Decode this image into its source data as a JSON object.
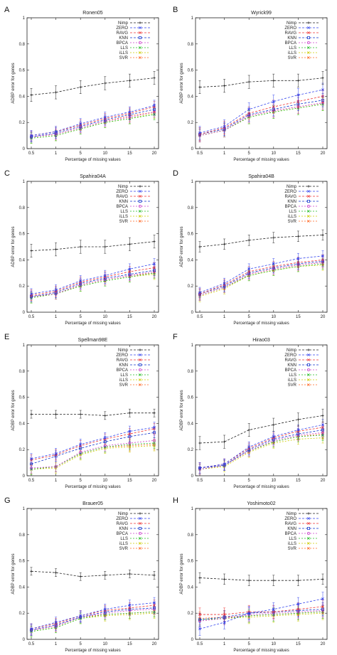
{
  "figure": {
    "series_names": [
      "Nimp",
      "ZERO",
      "RAVG",
      "KNN",
      "BPCA",
      "LLS",
      "iLLS",
      "SVR"
    ],
    "series_colors": [
      "#222222",
      "#3344ee",
      "#ee3333",
      "#1133cc",
      "#cc44cc",
      "#22bb22",
      "#cccc00",
      "#ff6622"
    ]
  },
  "chart_data": [
    {
      "type": "line",
      "panel": "A",
      "title": "Ronen05",
      "xlabel": "Percentage of missing values",
      "ylabel": "ADBP error for genes",
      "categories": [
        "0.5",
        "1",
        "5",
        "10",
        "15",
        "20"
      ],
      "ylim": [
        0,
        1
      ],
      "yticks": [
        "0",
        "0.2",
        "0.4",
        "0.6",
        "0.8",
        "1"
      ],
      "legend": "top-right",
      "grid": false,
      "series": [
        {
          "name": "Nimp",
          "values": [
            0.41,
            0.43,
            0.47,
            0.5,
            0.52,
            0.54
          ],
          "err": 0.05
        },
        {
          "name": "ZERO",
          "values": [
            0.1,
            0.13,
            0.19,
            0.24,
            0.28,
            0.33
          ],
          "err": 0.04
        },
        {
          "name": "RAVG",
          "values": [
            0.1,
            0.13,
            0.18,
            0.23,
            0.27,
            0.32
          ],
          "err": 0.04
        },
        {
          "name": "KNN",
          "values": [
            0.09,
            0.12,
            0.17,
            0.22,
            0.26,
            0.3
          ],
          "err": 0.04
        },
        {
          "name": "BPCA",
          "values": [
            0.09,
            0.11,
            0.16,
            0.21,
            0.24,
            0.28
          ],
          "err": 0.04
        },
        {
          "name": "LLS",
          "values": [
            0.08,
            0.1,
            0.15,
            0.2,
            0.23,
            0.26
          ],
          "err": 0.04
        },
        {
          "name": "iLLS",
          "values": [
            0.08,
            0.1,
            0.15,
            0.2,
            0.23,
            0.27
          ],
          "err": 0.04
        },
        {
          "name": "SVR",
          "values": [
            0.09,
            0.11,
            0.16,
            0.21,
            0.25,
            0.28
          ],
          "err": 0.04
        }
      ]
    },
    {
      "type": "line",
      "panel": "B",
      "title": "Wyrick99",
      "xlabel": "Percentage of missing values",
      "ylabel": "ADBP error for genes",
      "categories": [
        "0.5",
        "1",
        "5",
        "10",
        "15",
        "20"
      ],
      "ylim": [
        0,
        1
      ],
      "yticks": [
        "0",
        "0.2",
        "0.4",
        "0.6",
        "0.8",
        "1"
      ],
      "legend": "top-right",
      "grid": false,
      "series": [
        {
          "name": "Nimp",
          "values": [
            0.47,
            0.48,
            0.51,
            0.52,
            0.52,
            0.54
          ],
          "err": 0.05
        },
        {
          "name": "ZERO",
          "values": [
            0.12,
            0.17,
            0.3,
            0.36,
            0.41,
            0.45
          ],
          "err": 0.05
        },
        {
          "name": "RAVG",
          "values": [
            0.11,
            0.16,
            0.27,
            0.32,
            0.36,
            0.4
          ],
          "err": 0.05
        },
        {
          "name": "KNN",
          "values": [
            0.11,
            0.15,
            0.26,
            0.3,
            0.34,
            0.37
          ],
          "err": 0.05
        },
        {
          "name": "BPCA",
          "values": [
            0.1,
            0.14,
            0.25,
            0.29,
            0.32,
            0.35
          ],
          "err": 0.05
        },
        {
          "name": "LLS",
          "values": [
            0.1,
            0.14,
            0.24,
            0.28,
            0.31,
            0.34
          ],
          "err": 0.05
        },
        {
          "name": "iLLS",
          "values": [
            0.1,
            0.14,
            0.24,
            0.28,
            0.31,
            0.34
          ],
          "err": 0.05
        },
        {
          "name": "SVR",
          "values": [
            0.1,
            0.14,
            0.25,
            0.29,
            0.32,
            0.35
          ],
          "err": 0.05
        }
      ]
    },
    {
      "type": "line",
      "panel": "C",
      "title": "Spahira04A",
      "xlabel": "Percentage of missing values",
      "ylabel": "ADBP error for genes",
      "categories": [
        "0.5",
        "1",
        "5",
        "10",
        "15",
        "20"
      ],
      "ylim": [
        0,
        1
      ],
      "yticks": [
        "0",
        "0.2",
        "0.4",
        "0.6",
        "0.8",
        "1"
      ],
      "legend": "top-right",
      "grid": false,
      "series": [
        {
          "name": "Nimp",
          "values": [
            0.47,
            0.48,
            0.5,
            0.5,
            0.52,
            0.54
          ],
          "err": 0.05
        },
        {
          "name": "ZERO",
          "values": [
            0.14,
            0.17,
            0.24,
            0.28,
            0.33,
            0.37
          ],
          "err": 0.04
        },
        {
          "name": "RAVG",
          "values": [
            0.13,
            0.16,
            0.23,
            0.27,
            0.31,
            0.34
          ],
          "err": 0.04
        },
        {
          "name": "KNN",
          "values": [
            0.12,
            0.15,
            0.22,
            0.26,
            0.29,
            0.32
          ],
          "err": 0.04
        },
        {
          "name": "BPCA",
          "values": [
            0.12,
            0.14,
            0.21,
            0.25,
            0.28,
            0.31
          ],
          "err": 0.04
        },
        {
          "name": "LLS",
          "values": [
            0.11,
            0.14,
            0.2,
            0.24,
            0.27,
            0.3
          ],
          "err": 0.04
        },
        {
          "name": "iLLS",
          "values": [
            0.11,
            0.14,
            0.2,
            0.24,
            0.27,
            0.29
          ],
          "err": 0.04
        },
        {
          "name": "SVR",
          "values": [
            0.12,
            0.14,
            0.21,
            0.25,
            0.28,
            0.3
          ],
          "err": 0.04
        }
      ]
    },
    {
      "type": "line",
      "panel": "D",
      "title": "Spahira04B",
      "xlabel": "Percentage of missing values",
      "ylabel": "ADBP error for genes",
      "categories": [
        "0.5",
        "1",
        "5",
        "10",
        "15",
        "20"
      ],
      "ylim": [
        0,
        1
      ],
      "yticks": [
        "0",
        "0.2",
        "0.4",
        "0.6",
        "0.8",
        "1"
      ],
      "legend": "top-right",
      "grid": false,
      "series": [
        {
          "name": "Nimp",
          "values": [
            0.5,
            0.52,
            0.55,
            0.57,
            0.58,
            0.59
          ],
          "err": 0.04
        },
        {
          "name": "ZERO",
          "values": [
            0.15,
            0.22,
            0.33,
            0.37,
            0.41,
            0.43
          ],
          "err": 0.04
        },
        {
          "name": "RAVG",
          "values": [
            0.14,
            0.21,
            0.31,
            0.35,
            0.38,
            0.4
          ],
          "err": 0.04
        },
        {
          "name": "KNN",
          "values": [
            0.14,
            0.2,
            0.3,
            0.34,
            0.37,
            0.39
          ],
          "err": 0.04
        },
        {
          "name": "BPCA",
          "values": [
            0.13,
            0.19,
            0.29,
            0.33,
            0.36,
            0.38
          ],
          "err": 0.04
        },
        {
          "name": "LLS",
          "values": [
            0.13,
            0.19,
            0.28,
            0.32,
            0.35,
            0.37
          ],
          "err": 0.04
        },
        {
          "name": "iLLS",
          "values": [
            0.12,
            0.18,
            0.28,
            0.32,
            0.35,
            0.36
          ],
          "err": 0.04
        },
        {
          "name": "SVR",
          "values": [
            0.13,
            0.19,
            0.29,
            0.33,
            0.36,
            0.38
          ],
          "err": 0.04
        }
      ]
    },
    {
      "type": "line",
      "panel": "E",
      "title": "Spellman98E",
      "xlabel": "Percentage of missing values",
      "ylabel": "ADBP error for genes",
      "categories": [
        "0.5",
        "1",
        "5",
        "10",
        "15",
        "20"
      ],
      "ylim": [
        0,
        1
      ],
      "yticks": [
        "0",
        "0.2",
        "0.4",
        "0.6",
        "0.8",
        "1"
      ],
      "legend": "top-right",
      "grid": false,
      "series": [
        {
          "name": "Nimp",
          "values": [
            0.47,
            0.47,
            0.47,
            0.46,
            0.48,
            0.48
          ],
          "err": 0.03
        },
        {
          "name": "ZERO",
          "values": [
            0.13,
            0.17,
            0.24,
            0.29,
            0.34,
            0.37
          ],
          "err": 0.04
        },
        {
          "name": "RAVG",
          "values": [
            0.12,
            0.16,
            0.23,
            0.28,
            0.32,
            0.36
          ],
          "err": 0.04
        },
        {
          "name": "KNN",
          "values": [
            0.09,
            0.15,
            0.21,
            0.26,
            0.3,
            0.33
          ],
          "err": 0.04
        },
        {
          "name": "BPCA",
          "values": [
            0.06,
            0.07,
            0.18,
            0.23,
            0.25,
            0.27
          ],
          "err": 0.04
        },
        {
          "name": "LLS",
          "values": [
            0.05,
            0.07,
            0.17,
            0.22,
            0.24,
            0.25
          ],
          "err": 0.04
        },
        {
          "name": "iLLS",
          "values": [
            0.05,
            0.06,
            0.16,
            0.21,
            0.22,
            0.23
          ],
          "err": 0.04
        },
        {
          "name": "SVR",
          "values": [
            0.05,
            0.07,
            0.17,
            0.22,
            0.23,
            0.24
          ],
          "err": 0.04
        }
      ]
    },
    {
      "type": "line",
      "panel": "F",
      "title": "Hirao03",
      "xlabel": "Percentage of missing values",
      "ylabel": "ADBP error for genes",
      "categories": [
        "0.5",
        "1",
        "5",
        "10",
        "15",
        "20"
      ],
      "ylim": [
        0,
        1
      ],
      "yticks": [
        "0",
        "0.2",
        "0.4",
        "0.6",
        "0.8",
        "1"
      ],
      "legend": "top-right",
      "grid": false,
      "series": [
        {
          "name": "Nimp",
          "values": [
            0.25,
            0.26,
            0.35,
            0.39,
            0.43,
            0.46
          ],
          "err": 0.05
        },
        {
          "name": "ZERO",
          "values": [
            0.06,
            0.09,
            0.22,
            0.3,
            0.35,
            0.39
          ],
          "err": 0.04
        },
        {
          "name": "RAVG",
          "values": [
            0.06,
            0.09,
            0.21,
            0.29,
            0.34,
            0.37
          ],
          "err": 0.04
        },
        {
          "name": "KNN",
          "values": [
            0.06,
            0.08,
            0.2,
            0.28,
            0.32,
            0.35
          ],
          "err": 0.04
        },
        {
          "name": "BPCA",
          "values": [
            0.05,
            0.08,
            0.19,
            0.27,
            0.31,
            0.33
          ],
          "err": 0.04
        },
        {
          "name": "LLS",
          "values": [
            0.05,
            0.08,
            0.19,
            0.26,
            0.3,
            0.31
          ],
          "err": 0.04
        },
        {
          "name": "iLLS",
          "values": [
            0.05,
            0.07,
            0.18,
            0.25,
            0.28,
            0.29
          ],
          "err": 0.04
        },
        {
          "name": "SVR",
          "values": [
            0.05,
            0.08,
            0.19,
            0.26,
            0.3,
            0.32
          ],
          "err": 0.04
        }
      ]
    },
    {
      "type": "line",
      "panel": "G",
      "title": "Brauer05",
      "xlabel": "Percentage of missing values",
      "ylabel": "ADBP error for genes",
      "categories": [
        "0.5",
        "1",
        "5",
        "10",
        "15",
        "20"
      ],
      "ylim": [
        0,
        1
      ],
      "yticks": [
        "0",
        "0.2",
        "0.4",
        "0.6",
        "0.8",
        "1"
      ],
      "legend": "top-right",
      "grid": false,
      "series": [
        {
          "name": "Nimp",
          "values": [
            0.52,
            0.51,
            0.48,
            0.49,
            0.5,
            0.49
          ],
          "err": 0.03
        },
        {
          "name": "ZERO",
          "values": [
            0.08,
            0.13,
            0.18,
            0.23,
            0.26,
            0.28
          ],
          "err": 0.04
        },
        {
          "name": "RAVG",
          "values": [
            0.08,
            0.12,
            0.18,
            0.22,
            0.24,
            0.26
          ],
          "err": 0.04
        },
        {
          "name": "KNN",
          "values": [
            0.07,
            0.11,
            0.17,
            0.21,
            0.23,
            0.24
          ],
          "err": 0.04
        },
        {
          "name": "BPCA",
          "values": [
            0.07,
            0.1,
            0.17,
            0.2,
            0.22,
            0.23
          ],
          "err": 0.04
        },
        {
          "name": "LLS",
          "values": [
            0.06,
            0.09,
            0.16,
            0.19,
            0.2,
            0.21
          ],
          "err": 0.04
        },
        {
          "name": "iLLS",
          "values": [
            0.06,
            0.09,
            0.16,
            0.18,
            0.19,
            0.2
          ],
          "err": 0.04
        },
        {
          "name": "SVR",
          "values": [
            0.07,
            0.1,
            0.17,
            0.19,
            0.2,
            0.21
          ],
          "err": 0.04
        }
      ]
    },
    {
      "type": "line",
      "panel": "H",
      "title": "Yoshimoto02",
      "xlabel": "Percentage of missing values",
      "ylabel": "ADBP error for genes",
      "categories": [
        "0.5",
        "1",
        "5",
        "10",
        "15",
        "20"
      ],
      "ylim": [
        0,
        1
      ],
      "yticks": [
        "0",
        "0.2",
        "0.4",
        "0.6",
        "0.8",
        "1"
      ],
      "legend": "top-right",
      "grid": false,
      "series": [
        {
          "name": "Nimp",
          "values": [
            0.47,
            0.46,
            0.45,
            0.45,
            0.45,
            0.46
          ],
          "err": 0.04
        },
        {
          "name": "ZERO",
          "values": [
            0.08,
            0.13,
            0.2,
            0.23,
            0.27,
            0.31
          ],
          "err": 0.05
        },
        {
          "name": "RAVG",
          "values": [
            0.19,
            0.19,
            0.21,
            0.21,
            0.23,
            0.25
          ],
          "err": 0.05
        },
        {
          "name": "KNN",
          "values": [
            0.15,
            0.17,
            0.2,
            0.21,
            0.22,
            0.23
          ],
          "err": 0.05
        },
        {
          "name": "BPCA",
          "values": [
            0.14,
            0.16,
            0.19,
            0.2,
            0.21,
            0.22
          ],
          "err": 0.05
        },
        {
          "name": "LLS",
          "values": [
            0.15,
            0.16,
            0.18,
            0.19,
            0.2,
            0.21
          ],
          "err": 0.05
        },
        {
          "name": "iLLS",
          "values": [
            0.15,
            0.16,
            0.17,
            0.18,
            0.19,
            0.2
          ],
          "err": 0.05
        },
        {
          "name": "SVR",
          "values": [
            0.16,
            0.17,
            0.18,
            0.19,
            0.2,
            0.21
          ],
          "err": 0.05
        }
      ]
    }
  ]
}
